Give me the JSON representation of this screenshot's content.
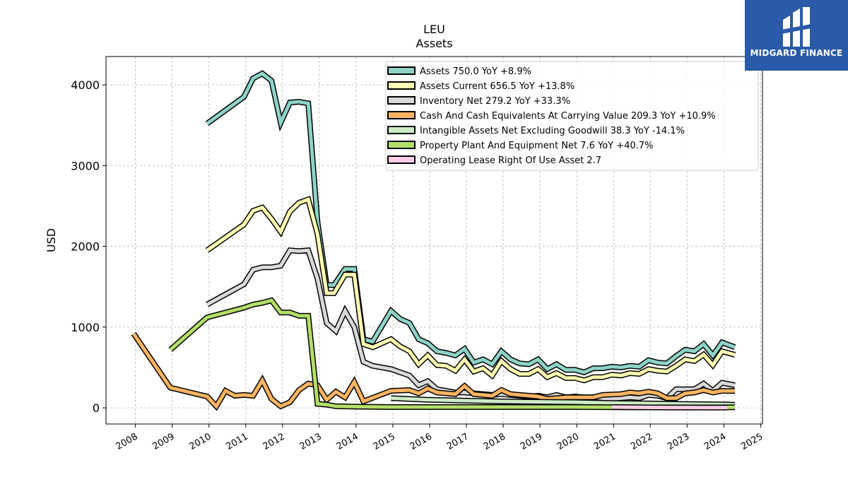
{
  "chart_data": {
    "type": "line",
    "title": "LEU",
    "subtitle": "Assets",
    "ylabel": "USD",
    "xlabel": "",
    "xlim": [
      2007.2,
      2025.05
    ],
    "ylim": [
      -200,
      4350
    ],
    "yticks": [
      0,
      1000,
      2000,
      3000,
      4000
    ],
    "xticks": [
      2008,
      2009,
      2010,
      2011,
      2012,
      2013,
      2014,
      2015,
      2016,
      2017,
      2018,
      2019,
      2020,
      2021,
      2022,
      2023,
      2024,
      2025
    ],
    "grid": true,
    "legend_position": "upper-right",
    "series": [
      {
        "name": "Assets",
        "legend": "Assets  750.0 YoY +8.9%",
        "color": "#8dd3c7",
        "points": [
          [
            2009.95,
            3520
          ],
          [
            2010.95,
            3850
          ],
          [
            2011.2,
            4080
          ],
          [
            2011.45,
            4140
          ],
          [
            2011.7,
            4050
          ],
          [
            2011.95,
            3530
          ],
          [
            2012.2,
            3780
          ],
          [
            2012.45,
            3790
          ],
          [
            2012.7,
            3770
          ],
          [
            2012.95,
            2300
          ],
          [
            2013.2,
            1520
          ],
          [
            2013.4,
            1520
          ],
          [
            2013.7,
            1720
          ],
          [
            2013.95,
            1720
          ],
          [
            2014.2,
            850
          ],
          [
            2014.45,
            820
          ],
          [
            2014.95,
            1200
          ],
          [
            2015.2,
            1100
          ],
          [
            2015.45,
            1050
          ],
          [
            2015.7,
            850
          ],
          [
            2015.95,
            800
          ],
          [
            2016.2,
            700
          ],
          [
            2016.45,
            680
          ],
          [
            2016.7,
            650
          ],
          [
            2016.95,
            730
          ],
          [
            2017.2,
            560
          ],
          [
            2017.45,
            600
          ],
          [
            2017.7,
            540
          ],
          [
            2017.95,
            700
          ],
          [
            2018.2,
            600
          ],
          [
            2018.45,
            550
          ],
          [
            2018.7,
            540
          ],
          [
            2018.95,
            600
          ],
          [
            2019.2,
            480
          ],
          [
            2019.45,
            540
          ],
          [
            2019.7,
            470
          ],
          [
            2019.95,
            470
          ],
          [
            2020.2,
            440
          ],
          [
            2020.45,
            490
          ],
          [
            2020.7,
            490
          ],
          [
            2020.95,
            510
          ],
          [
            2021.2,
            500
          ],
          [
            2021.45,
            520
          ],
          [
            2021.7,
            510
          ],
          [
            2021.95,
            590
          ],
          [
            2022.2,
            560
          ],
          [
            2022.45,
            550
          ],
          [
            2022.7,
            640
          ],
          [
            2022.95,
            720
          ],
          [
            2023.2,
            700
          ],
          [
            2023.45,
            790
          ],
          [
            2023.7,
            650
          ],
          [
            2023.95,
            810
          ],
          [
            2024.3,
            750
          ]
        ]
      },
      {
        "name": "Assets Current",
        "legend": "Assets Current  656.5 YoY +13.8%",
        "color": "#ffffb3",
        "points": [
          [
            2009.95,
            1950
          ],
          [
            2010.95,
            2270
          ],
          [
            2011.2,
            2440
          ],
          [
            2011.45,
            2480
          ],
          [
            2011.7,
            2340
          ],
          [
            2011.95,
            2180
          ],
          [
            2012.2,
            2430
          ],
          [
            2012.45,
            2540
          ],
          [
            2012.7,
            2580
          ],
          [
            2012.95,
            2150
          ],
          [
            2013.2,
            1420
          ],
          [
            2013.4,
            1420
          ],
          [
            2013.7,
            1650
          ],
          [
            2013.95,
            1650
          ],
          [
            2014.2,
            790
          ],
          [
            2014.45,
            750
          ],
          [
            2014.95,
            850
          ],
          [
            2015.2,
            760
          ],
          [
            2015.45,
            700
          ],
          [
            2015.7,
            540
          ],
          [
            2015.95,
            650
          ],
          [
            2016.2,
            530
          ],
          [
            2016.45,
            520
          ],
          [
            2016.7,
            460
          ],
          [
            2016.95,
            600
          ],
          [
            2017.2,
            450
          ],
          [
            2017.45,
            490
          ],
          [
            2017.7,
            400
          ],
          [
            2017.95,
            580
          ],
          [
            2018.2,
            480
          ],
          [
            2018.45,
            420
          ],
          [
            2018.7,
            420
          ],
          [
            2018.95,
            480
          ],
          [
            2019.2,
            380
          ],
          [
            2019.45,
            430
          ],
          [
            2019.7,
            370
          ],
          [
            2019.95,
            370
          ],
          [
            2020.2,
            340
          ],
          [
            2020.45,
            380
          ],
          [
            2020.7,
            380
          ],
          [
            2020.95,
            410
          ],
          [
            2021.2,
            400
          ],
          [
            2021.45,
            430
          ],
          [
            2021.7,
            420
          ],
          [
            2021.95,
            480
          ],
          [
            2022.2,
            460
          ],
          [
            2022.45,
            450
          ],
          [
            2022.7,
            520
          ],
          [
            2022.95,
            600
          ],
          [
            2023.2,
            580
          ],
          [
            2023.45,
            660
          ],
          [
            2023.7,
            530
          ],
          [
            2023.95,
            700
          ],
          [
            2024.3,
            656.5
          ]
        ]
      },
      {
        "name": "Inventory Net",
        "legend": "Inventory Net  279.2 YoY +33.3%",
        "color": "#d9d9d9",
        "points": [
          [
            2009.95,
            1280
          ],
          [
            2010.95,
            1530
          ],
          [
            2011.2,
            1710
          ],
          [
            2011.45,
            1740
          ],
          [
            2011.7,
            1740
          ],
          [
            2011.95,
            1760
          ],
          [
            2012.2,
            1950
          ],
          [
            2012.45,
            1940
          ],
          [
            2012.7,
            1950
          ],
          [
            2012.95,
            1600
          ],
          [
            2013.2,
            1050
          ],
          [
            2013.45,
            950
          ],
          [
            2013.7,
            1200
          ],
          [
            2013.95,
            1000
          ],
          [
            2014.2,
            570
          ],
          [
            2014.45,
            520
          ],
          [
            2014.95,
            480
          ],
          [
            2015.2,
            440
          ],
          [
            2015.45,
            400
          ],
          [
            2015.7,
            280
          ],
          [
            2015.95,
            330
          ],
          [
            2016.2,
            230
          ],
          [
            2016.45,
            210
          ],
          [
            2016.7,
            190
          ],
          [
            2016.95,
            190
          ],
          [
            2017.2,
            180
          ],
          [
            2017.45,
            170
          ],
          [
            2017.7,
            160
          ],
          [
            2017.95,
            170
          ],
          [
            2018.2,
            160
          ],
          [
            2018.45,
            150
          ],
          [
            2018.7,
            140
          ],
          [
            2018.95,
            150
          ],
          [
            2019.2,
            130
          ],
          [
            2019.45,
            160
          ],
          [
            2019.7,
            130
          ],
          [
            2019.95,
            140
          ],
          [
            2020.2,
            130
          ],
          [
            2020.45,
            130
          ],
          [
            2020.7,
            120
          ],
          [
            2020.95,
            110
          ],
          [
            2021.2,
            120
          ],
          [
            2021.45,
            130
          ],
          [
            2021.7,
            120
          ],
          [
            2021.95,
            160
          ],
          [
            2022.2,
            150
          ],
          [
            2022.45,
            120
          ],
          [
            2022.7,
            230
          ],
          [
            2022.95,
            230
          ],
          [
            2023.2,
            230
          ],
          [
            2023.45,
            300
          ],
          [
            2023.7,
            210
          ],
          [
            2023.95,
            310
          ],
          [
            2024.3,
            279.2
          ]
        ]
      },
      {
        "name": "Cash And Cash Equivalents At Carrying Value",
        "legend": "Cash And Cash Equivalents At Carrying Value  209.3 YoY +10.9%",
        "color": "#fdb462",
        "points": [
          [
            2007.95,
            920
          ],
          [
            2008.95,
            250
          ],
          [
            2009.95,
            140
          ],
          [
            2010.2,
            20
          ],
          [
            2010.45,
            210
          ],
          [
            2010.7,
            150
          ],
          [
            2010.95,
            160
          ],
          [
            2011.2,
            150
          ],
          [
            2011.45,
            340
          ],
          [
            2011.7,
            110
          ],
          [
            2011.95,
            20
          ],
          [
            2012.2,
            70
          ],
          [
            2012.45,
            220
          ],
          [
            2012.7,
            300
          ],
          [
            2012.95,
            280
          ],
          [
            2013.2,
            100
          ],
          [
            2013.45,
            200
          ],
          [
            2013.7,
            130
          ],
          [
            2013.95,
            320
          ],
          [
            2014.2,
            80
          ],
          [
            2014.95,
            210
          ],
          [
            2015.45,
            220
          ],
          [
            2015.7,
            180
          ],
          [
            2015.95,
            240
          ],
          [
            2016.2,
            190
          ],
          [
            2016.7,
            170
          ],
          [
            2016.95,
            270
          ],
          [
            2017.2,
            170
          ],
          [
            2017.7,
            150
          ],
          [
            2017.95,
            220
          ],
          [
            2018.2,
            170
          ],
          [
            2018.7,
            150
          ],
          [
            2018.95,
            140
          ],
          [
            2019.2,
            110
          ],
          [
            2019.7,
            130
          ],
          [
            2019.95,
            130
          ],
          [
            2020.45,
            130
          ],
          [
            2020.7,
            160
          ],
          [
            2021.2,
            170
          ],
          [
            2021.45,
            190
          ],
          [
            2021.7,
            180
          ],
          [
            2021.95,
            200
          ],
          [
            2022.2,
            180
          ],
          [
            2022.45,
            120
          ],
          [
            2022.7,
            120
          ],
          [
            2022.95,
            180
          ],
          [
            2023.2,
            190
          ],
          [
            2023.45,
            220
          ],
          [
            2023.7,
            190
          ],
          [
            2023.95,
            210
          ],
          [
            2024.3,
            209.3
          ]
        ]
      },
      {
        "name": "Intangible Assets Net Excluding Goodwill",
        "legend": "Intangible Assets Net Excluding Goodwill  38.3 YoY -14.1%",
        "color": "#ccebc5",
        "points": [
          [
            2014.95,
            120
          ],
          [
            2015.95,
            100
          ],
          [
            2016.95,
            90
          ],
          [
            2017.95,
            80
          ],
          [
            2018.95,
            75
          ],
          [
            2019.95,
            70
          ],
          [
            2020.95,
            60
          ],
          [
            2021.95,
            55
          ],
          [
            2022.95,
            48
          ],
          [
            2023.95,
            42
          ],
          [
            2024.3,
            38.3
          ]
        ]
      },
      {
        "name": "Property Plant And Equipment Net",
        "legend": "Property Plant And Equipment Net  7.6 YoY +40.7%",
        "color": "#b3de69",
        "points": [
          [
            2008.95,
            720
          ],
          [
            2009.95,
            1120
          ],
          [
            2010.95,
            1240
          ],
          [
            2011.2,
            1280
          ],
          [
            2011.45,
            1300
          ],
          [
            2011.7,
            1330
          ],
          [
            2011.95,
            1180
          ],
          [
            2012.2,
            1180
          ],
          [
            2012.45,
            1140
          ],
          [
            2012.7,
            1140
          ],
          [
            2012.95,
            50
          ],
          [
            2013.2,
            40
          ],
          [
            2013.45,
            20
          ],
          [
            2013.95,
            15
          ],
          [
            2014.95,
            10
          ],
          [
            2015.95,
            10
          ],
          [
            2016.95,
            10
          ],
          [
            2017.95,
            10
          ],
          [
            2018.95,
            10
          ],
          [
            2019.95,
            10
          ],
          [
            2020.95,
            8
          ],
          [
            2021.95,
            6
          ],
          [
            2022.95,
            5
          ],
          [
            2023.95,
            5.4
          ],
          [
            2024.3,
            7.6
          ]
        ]
      },
      {
        "name": "Operating Lease Right Of Use Asset",
        "legend": "Operating Lease Right Of Use Asset  2.7",
        "color": "#fccde5",
        "points": [
          [
            2020.95,
            10
          ],
          [
            2021.45,
            8
          ],
          [
            2021.95,
            6
          ],
          [
            2022.45,
            5
          ],
          [
            2022.95,
            5
          ],
          [
            2023.45,
            4
          ],
          [
            2023.95,
            3
          ],
          [
            2024.1,
            2.7
          ]
        ]
      }
    ]
  },
  "logo": {
    "text": "MIDGARD FINANCE",
    "background": "#2a5aa8"
  }
}
